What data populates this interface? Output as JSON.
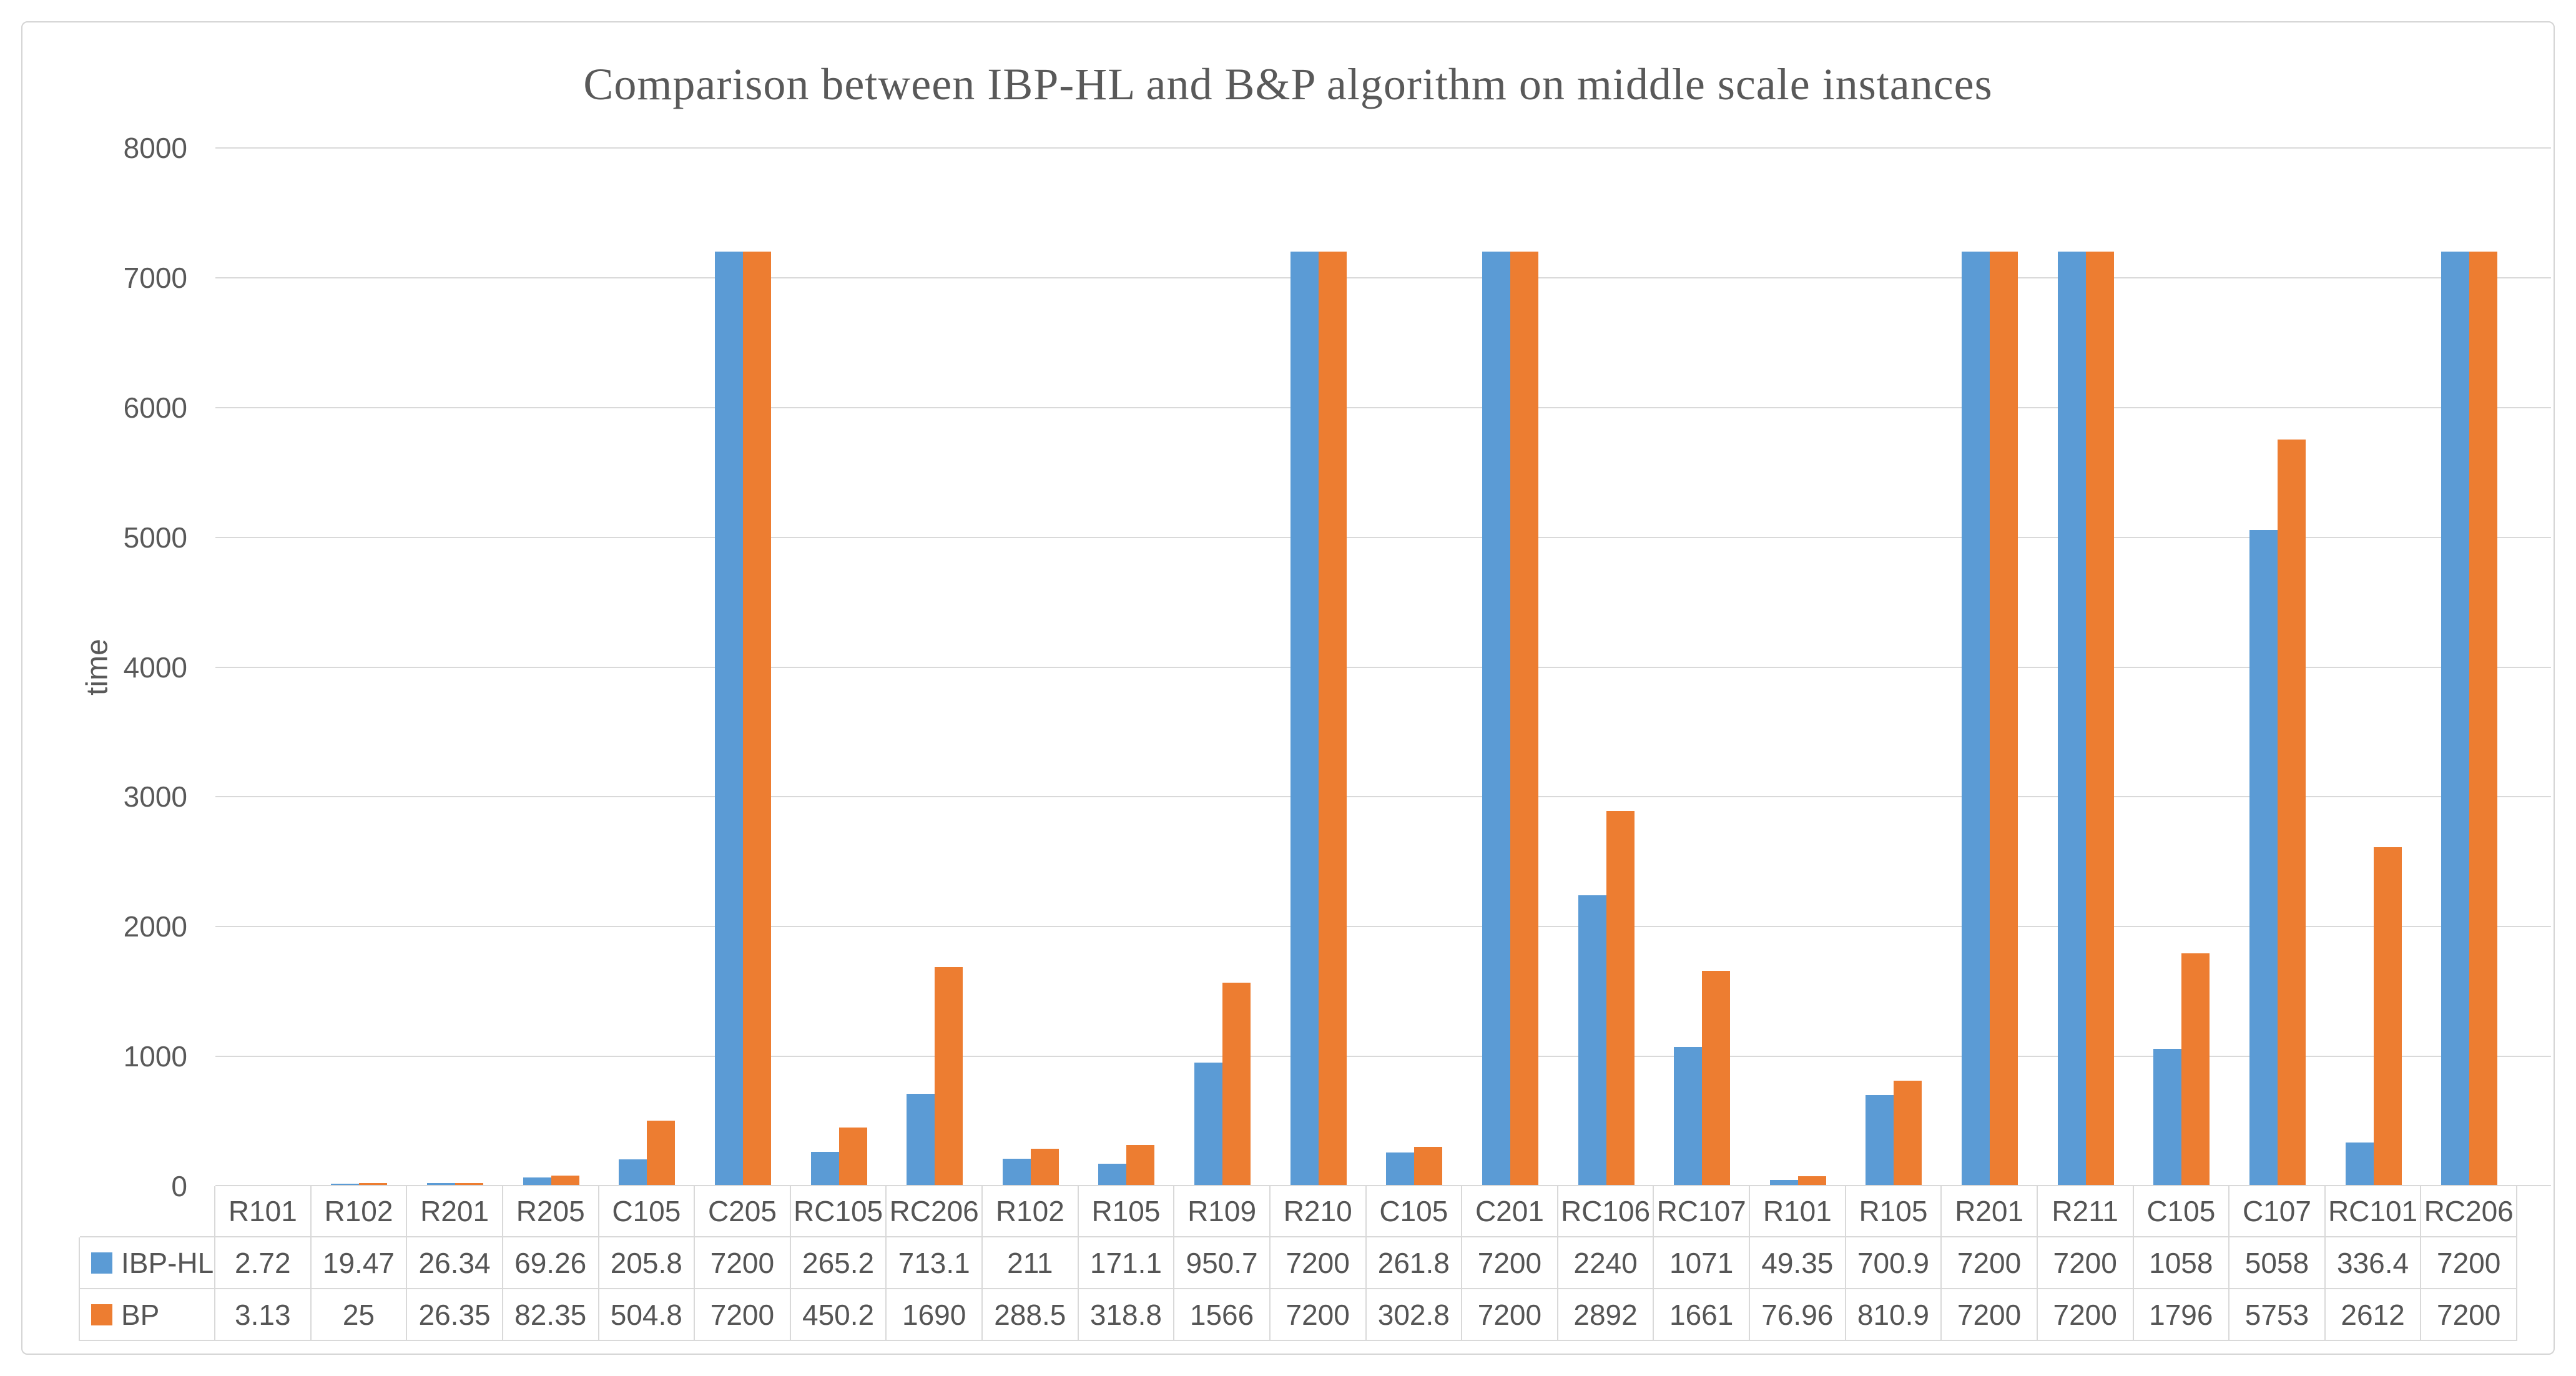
{
  "chart_data": {
    "type": "bar",
    "title": "Comparison between IBP-HL and B&P algorithm on middle scale instances",
    "xlabel": "",
    "ylabel": "time",
    "ylim": [
      0,
      8000
    ],
    "ytick_interval": 1000,
    "yticks": [
      0,
      1000,
      2000,
      3000,
      4000,
      5000,
      6000,
      7000,
      8000
    ],
    "grid": true,
    "legend_position": "data-table-left",
    "categories": [
      "R101",
      "R102",
      "R201",
      "R205",
      "C105",
      "C205",
      "RC105",
      "RC206",
      "R102",
      "R105",
      "R109",
      "R210",
      "C105",
      "C201",
      "RC106",
      "RC107",
      "R101",
      "R105",
      "R201",
      "R211",
      "C105",
      "C107",
      "RC101",
      "RC206"
    ],
    "series": [
      {
        "name": "IBP-HL",
        "color": "#5B9BD5",
        "values": [
          2.72,
          19.47,
          26.34,
          69.26,
          205.8,
          7200,
          265.2,
          713.1,
          211,
          171.1,
          950.7,
          7200,
          261.8,
          7200,
          2240,
          1071,
          49.35,
          700.9,
          7200,
          7200,
          1058,
          5058,
          336.4,
          7200
        ]
      },
      {
        "name": "BP",
        "color": "#ED7D31",
        "values": [
          3.13,
          25,
          26.35,
          82.35,
          504.8,
          7200,
          450.2,
          1690,
          288.5,
          318.8,
          1566,
          7200,
          302.8,
          7200,
          2892,
          1661,
          76.96,
          810.9,
          7200,
          7200,
          1796,
          5753,
          2612,
          7200
        ]
      }
    ],
    "colors": {
      "series1": "#5B9BD5",
      "series2": "#ED7D31",
      "gridline": "#D9D9D9",
      "axis_line": "#C3C3C3",
      "label_text": "#595959",
      "table_text": "#555555",
      "frame_border": "#D4D4D4"
    }
  }
}
